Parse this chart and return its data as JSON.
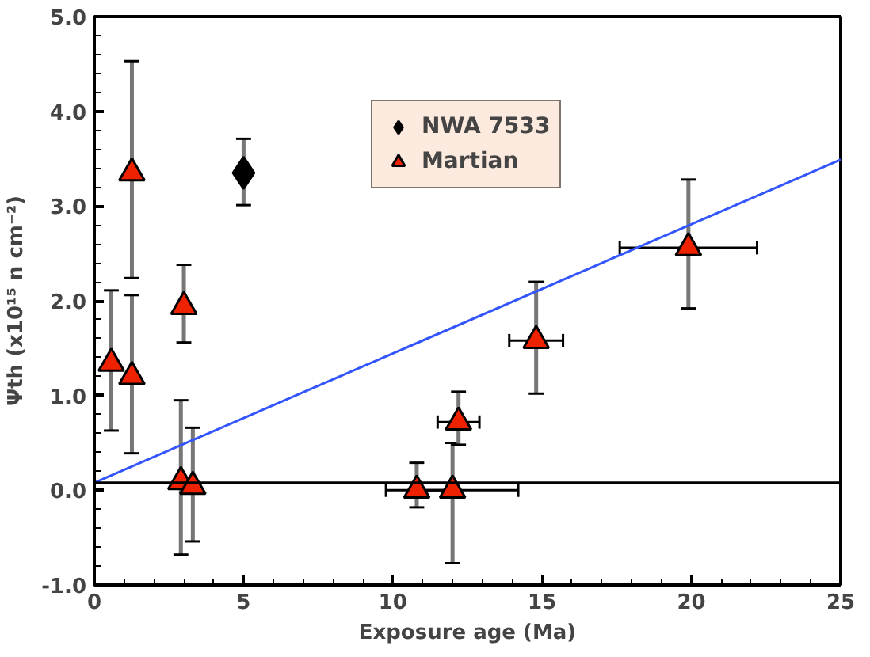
{
  "chart_data": {
    "type": "scatter",
    "xlabel": "Exposure age (Ma)",
    "ylabel": "Ψth (x10¹⁵ n cm⁻²)",
    "xlim": [
      0,
      25
    ],
    "ylim": [
      -1,
      5
    ],
    "xticks": [
      0,
      5,
      10,
      15,
      20,
      25
    ],
    "yticks": [
      {
        "value": -1,
        "label": "-1.0"
      },
      {
        "value": 0,
        "label": "0.0"
      },
      {
        "value": 1,
        "label": "1.0"
      },
      {
        "value": 2,
        "label": "2.0"
      },
      {
        "value": 3,
        "label": "3.0"
      },
      {
        "value": 4,
        "label": "4.0"
      },
      {
        "value": 5,
        "label": "5.0"
      }
    ],
    "grid": false,
    "legend": "top",
    "series": [
      {
        "name": "NWA 7533",
        "color": "#000000",
        "marker": "diamond",
        "x": [
          5.0
        ],
        "values": [
          3.35
        ],
        "errors": [
          [
            3.01,
            3.71
          ]
        ]
      },
      {
        "name": "Martian",
        "color": "#ee2200",
        "marker": "triangle",
        "x": [
          0.57,
          1.26,
          1.26,
          3.0,
          2.9,
          3.3,
          10.8,
          12.0,
          12.2,
          14.8,
          19.9
        ],
        "values": [
          1.34,
          3.35,
          1.2,
          1.94,
          0.09,
          0.04,
          0.0,
          0.0,
          0.72,
          1.58,
          2.56
        ],
        "errors": [
          [
            0.63,
            2.11
          ],
          [
            2.24,
            4.53
          ],
          [
            0.39,
            2.06
          ],
          [
            1.56,
            2.38
          ],
          [
            -0.68,
            0.95
          ],
          [
            -0.54,
            0.66
          ],
          [
            -0.18,
            0.29
          ],
          [
            -0.77,
            0.5
          ],
          [
            0.48,
            1.04
          ],
          [
            1.02,
            2.2
          ],
          [
            1.92,
            3.28
          ]
        ],
        "xerrors": [
          null,
          null,
          null,
          null,
          null,
          null,
          [
            9.77,
            11.9
          ],
          [
            10.8,
            14.2
          ],
          [
            11.5,
            12.9
          ],
          [
            13.9,
            15.7
          ],
          [
            17.6,
            22.2
          ]
        ]
      },
      {
        "type": "line",
        "color": "#3355ff",
        "x": [
          0,
          25
        ],
        "values": [
          0.08,
          3.49
        ]
      }
    ],
    "ref_lines": [
      {
        "axis": "y",
        "value": 0.08,
        "color": "#000000"
      }
    ]
  }
}
